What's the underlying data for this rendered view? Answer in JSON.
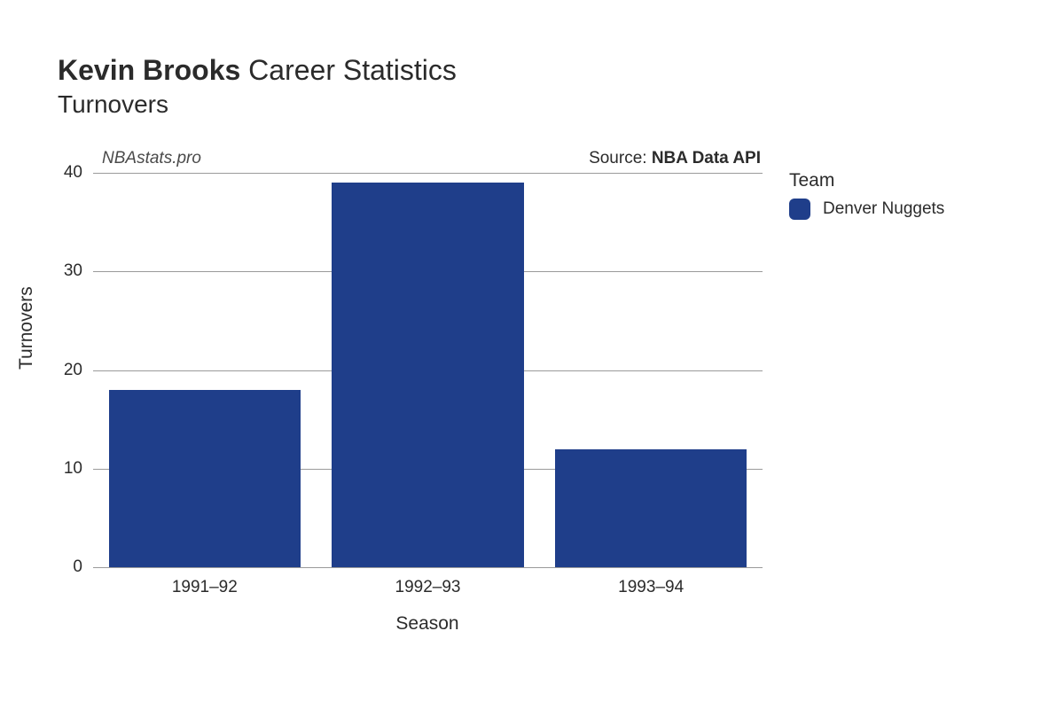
{
  "title": {
    "bold": "Kevin Brooks",
    "regular": " Career Statistics",
    "sub": "Turnovers",
    "bold_fontsize": 32,
    "sub_fontsize": 28,
    "color": "#2b2b2b"
  },
  "watermark": {
    "text": "NBAstats.pro",
    "fontsize": 19,
    "font_style": "italic",
    "color": "#4a4a4a"
  },
  "source": {
    "prefix": "Source: ",
    "name": "NBA Data API",
    "fontsize": 19,
    "color": "#2b2b2b"
  },
  "chart": {
    "type": "bar",
    "categories": [
      "1991–92",
      "1992–93",
      "1993–94"
    ],
    "values": [
      18,
      39,
      12
    ],
    "bar_color": "#1f3e8a",
    "bar_width_ratio": 0.86,
    "background": "#ffffff",
    "grid_color": "#888888",
    "x_axis": {
      "title": "Season",
      "title_fontsize": 21,
      "tick_fontsize": 19
    },
    "y_axis": {
      "title": "Turnovers",
      "title_fontsize": 21,
      "tick_fontsize": 19,
      "ylim": [
        0,
        40
      ],
      "ytick_step": 10
    }
  },
  "legend": {
    "title": "Team",
    "items": [
      {
        "label": "Denver Nuggets",
        "color": "#1f3e8a"
      }
    ],
    "title_fontsize": 21,
    "label_fontsize": 19,
    "swatch_radius": 6
  }
}
